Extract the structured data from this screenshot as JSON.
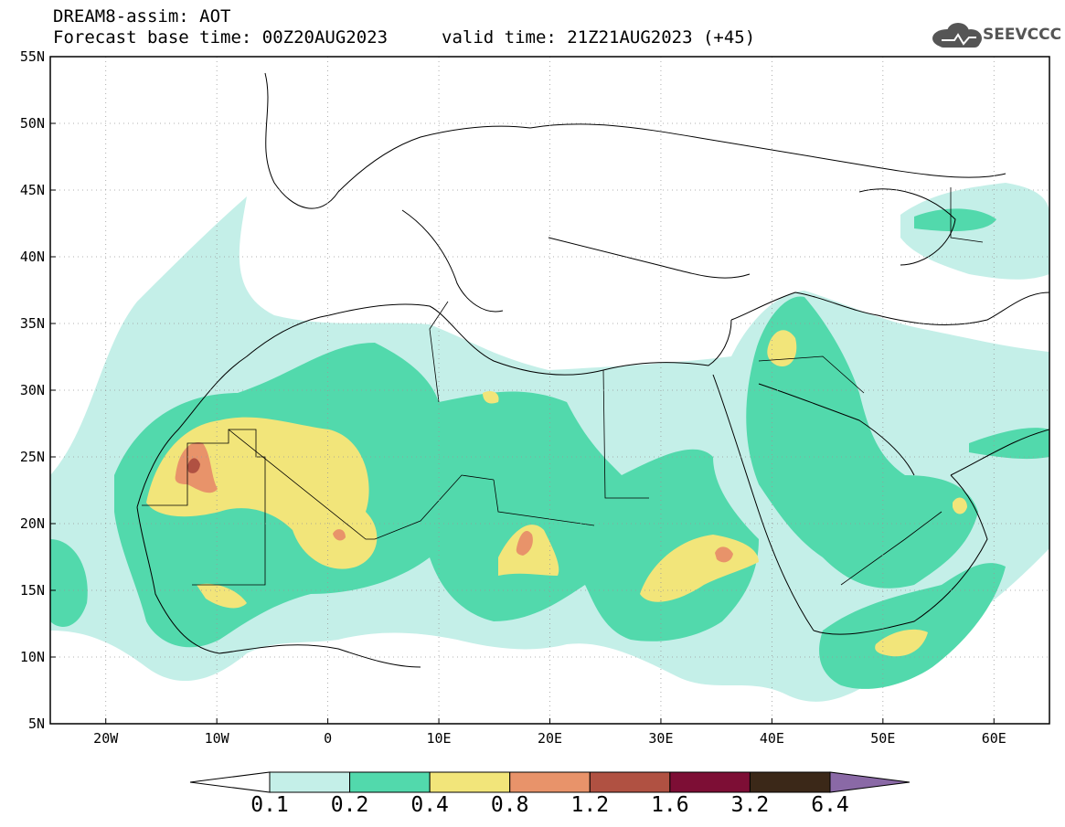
{
  "header": {
    "line1": "DREAM8-assim: AOT",
    "line2": "Forecast base time: 00Z20AUG2023",
    "line3": "valid time: 21Z21AUG2023 (+45)",
    "logo_text": "SEEVCCC"
  },
  "map": {
    "lon_range": [
      -25,
      65
    ],
    "lat_range": [
      5,
      55
    ],
    "lat_ticks": [
      "55N",
      "50N",
      "45N",
      "40N",
      "35N",
      "30N",
      "25N",
      "20N",
      "15N",
      "10N",
      "5N"
    ],
    "lon_ticks": [
      "20W",
      "10W",
      "0",
      "10E",
      "20E",
      "30E",
      "40E",
      "50E",
      "60E"
    ],
    "grid": "dotted",
    "variable": "Aerosol optical thickness (dust)"
  },
  "colorbar": {
    "levels": [
      "0.1",
      "0.2",
      "0.4",
      "0.8",
      "1.2",
      "1.6",
      "3.2",
      "6.4"
    ],
    "colors": [
      "#c4efe8",
      "#52d9ac",
      "#f2e57a",
      "#e8936a",
      "#b05142",
      "#7d0e35",
      "#3b2818",
      "#8a69a6"
    ],
    "under_color": "#ffffff",
    "over_color": "#8a69a6"
  },
  "colors": {
    "c1": "#c4efe8",
    "c2": "#52d9ac",
    "c3": "#f2e57a",
    "c4": "#e8936a",
    "c5": "#b05142"
  }
}
